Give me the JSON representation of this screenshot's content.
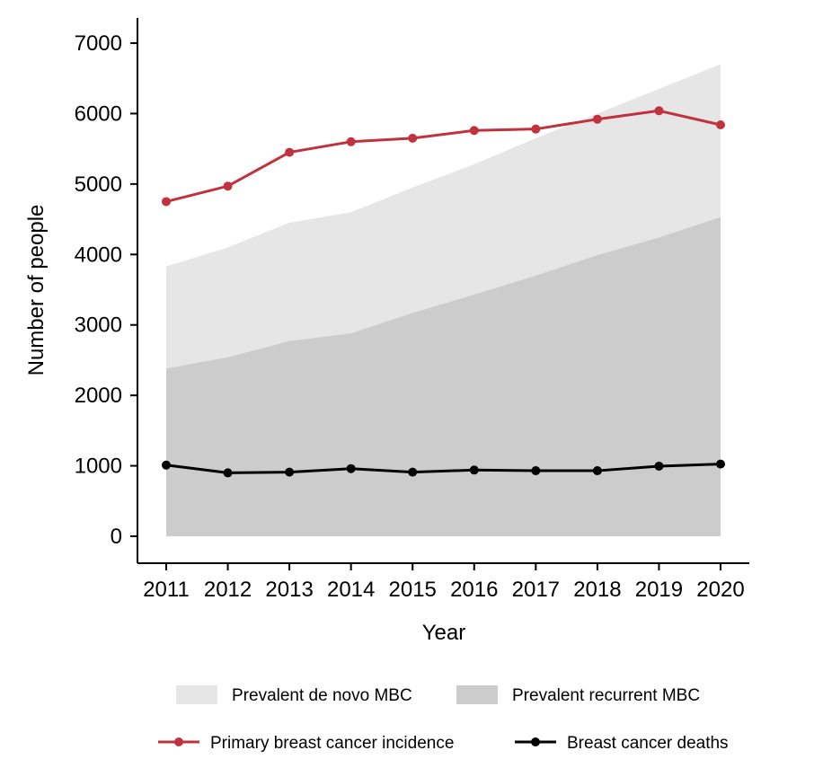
{
  "chart_data": {
    "type": "area",
    "title": "",
    "xlabel": "Year",
    "ylabel": "Number of people",
    "ylim": [
      0,
      7000
    ],
    "yticks": [
      0,
      1000,
      2000,
      3000,
      4000,
      5000,
      6000,
      7000
    ],
    "ytick_labels": [
      "0",
      "1000",
      "2000",
      "3000",
      "4000",
      "5000",
      "6000",
      "7000"
    ],
    "categories": [
      "2011",
      "2012",
      "2013",
      "2014",
      "2015",
      "2016",
      "2017",
      "2018",
      "2019",
      "2020"
    ],
    "grid": false,
    "legend_position": "bottom",
    "series": [
      {
        "name": "Prevalent de novo MBC",
        "kind": "area",
        "color": "#e6e6e6",
        "values": [
          3830,
          4100,
          4450,
          4600,
          4950,
          5280,
          5650,
          6000,
          6350,
          6700
        ]
      },
      {
        "name": "Prevalent recurrent MBC",
        "kind": "area",
        "color": "#cccccc",
        "values": [
          2380,
          2540,
          2770,
          2880,
          3170,
          3430,
          3700,
          3990,
          4240,
          4530
        ]
      },
      {
        "name": "Primary breast cancer incidence",
        "kind": "line",
        "color": "#c1323f",
        "values": [
          4750,
          4970,
          5450,
          5600,
          5650,
          5760,
          5780,
          5920,
          6040,
          5840
        ]
      },
      {
        "name": "Breast cancer deaths",
        "kind": "line",
        "color": "#000000",
        "values": [
          1010,
          900,
          910,
          960,
          910,
          940,
          930,
          930,
          995,
          1025
        ]
      }
    ]
  }
}
